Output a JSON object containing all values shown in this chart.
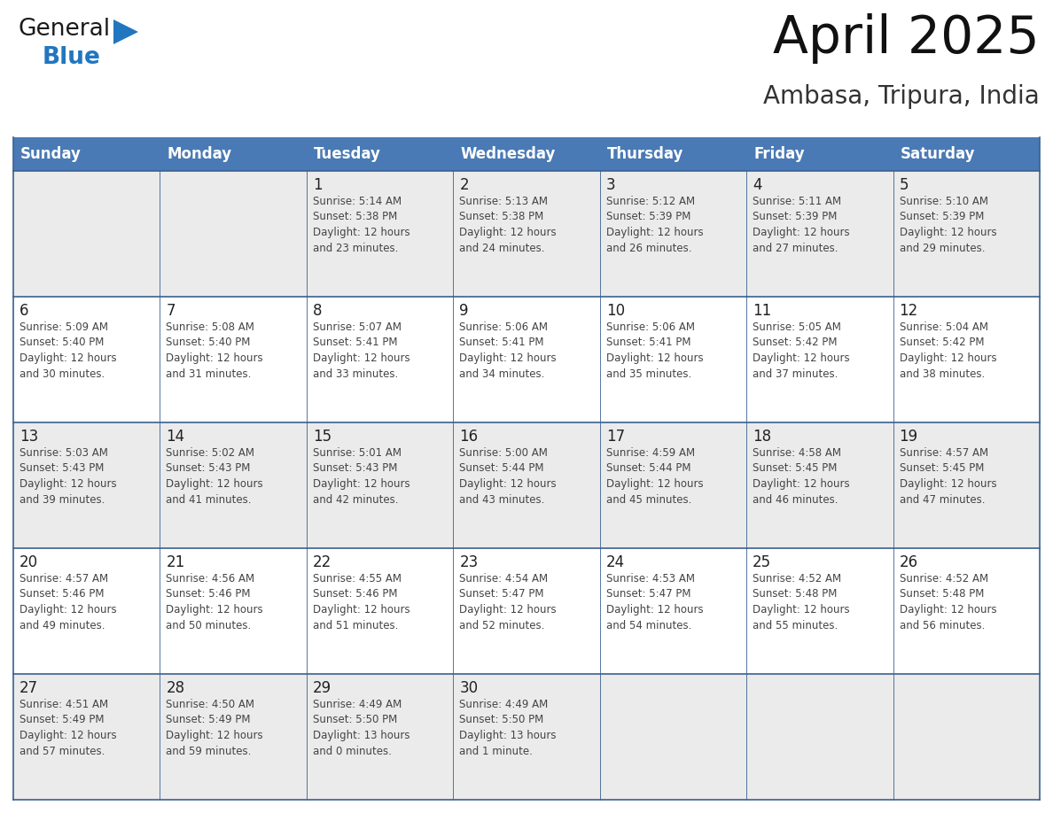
{
  "title": "April 2025",
  "subtitle": "Ambasa, Tripura, India",
  "header_bg": "#4a7ab5",
  "header_fg": "#ffffff",
  "days_of_week": [
    "Sunday",
    "Monday",
    "Tuesday",
    "Wednesday",
    "Thursday",
    "Friday",
    "Saturday"
  ],
  "row_bg_even": "#ebebeb",
  "row_bg_odd": "#ffffff",
  "cell_text_color": "#444444",
  "day_num_color": "#222222",
  "grid_line_color": "#3a6090",
  "calendar": [
    [
      {
        "day": null,
        "info": null
      },
      {
        "day": null,
        "info": null
      },
      {
        "day": 1,
        "info": "Sunrise: 5:14 AM\nSunset: 5:38 PM\nDaylight: 12 hours\nand 23 minutes."
      },
      {
        "day": 2,
        "info": "Sunrise: 5:13 AM\nSunset: 5:38 PM\nDaylight: 12 hours\nand 24 minutes."
      },
      {
        "day": 3,
        "info": "Sunrise: 5:12 AM\nSunset: 5:39 PM\nDaylight: 12 hours\nand 26 minutes."
      },
      {
        "day": 4,
        "info": "Sunrise: 5:11 AM\nSunset: 5:39 PM\nDaylight: 12 hours\nand 27 minutes."
      },
      {
        "day": 5,
        "info": "Sunrise: 5:10 AM\nSunset: 5:39 PM\nDaylight: 12 hours\nand 29 minutes."
      }
    ],
    [
      {
        "day": 6,
        "info": "Sunrise: 5:09 AM\nSunset: 5:40 PM\nDaylight: 12 hours\nand 30 minutes."
      },
      {
        "day": 7,
        "info": "Sunrise: 5:08 AM\nSunset: 5:40 PM\nDaylight: 12 hours\nand 31 minutes."
      },
      {
        "day": 8,
        "info": "Sunrise: 5:07 AM\nSunset: 5:41 PM\nDaylight: 12 hours\nand 33 minutes."
      },
      {
        "day": 9,
        "info": "Sunrise: 5:06 AM\nSunset: 5:41 PM\nDaylight: 12 hours\nand 34 minutes."
      },
      {
        "day": 10,
        "info": "Sunrise: 5:06 AM\nSunset: 5:41 PM\nDaylight: 12 hours\nand 35 minutes."
      },
      {
        "day": 11,
        "info": "Sunrise: 5:05 AM\nSunset: 5:42 PM\nDaylight: 12 hours\nand 37 minutes."
      },
      {
        "day": 12,
        "info": "Sunrise: 5:04 AM\nSunset: 5:42 PM\nDaylight: 12 hours\nand 38 minutes."
      }
    ],
    [
      {
        "day": 13,
        "info": "Sunrise: 5:03 AM\nSunset: 5:43 PM\nDaylight: 12 hours\nand 39 minutes."
      },
      {
        "day": 14,
        "info": "Sunrise: 5:02 AM\nSunset: 5:43 PM\nDaylight: 12 hours\nand 41 minutes."
      },
      {
        "day": 15,
        "info": "Sunrise: 5:01 AM\nSunset: 5:43 PM\nDaylight: 12 hours\nand 42 minutes."
      },
      {
        "day": 16,
        "info": "Sunrise: 5:00 AM\nSunset: 5:44 PM\nDaylight: 12 hours\nand 43 minutes."
      },
      {
        "day": 17,
        "info": "Sunrise: 4:59 AM\nSunset: 5:44 PM\nDaylight: 12 hours\nand 45 minutes."
      },
      {
        "day": 18,
        "info": "Sunrise: 4:58 AM\nSunset: 5:45 PM\nDaylight: 12 hours\nand 46 minutes."
      },
      {
        "day": 19,
        "info": "Sunrise: 4:57 AM\nSunset: 5:45 PM\nDaylight: 12 hours\nand 47 minutes."
      }
    ],
    [
      {
        "day": 20,
        "info": "Sunrise: 4:57 AM\nSunset: 5:46 PM\nDaylight: 12 hours\nand 49 minutes."
      },
      {
        "day": 21,
        "info": "Sunrise: 4:56 AM\nSunset: 5:46 PM\nDaylight: 12 hours\nand 50 minutes."
      },
      {
        "day": 22,
        "info": "Sunrise: 4:55 AM\nSunset: 5:46 PM\nDaylight: 12 hours\nand 51 minutes."
      },
      {
        "day": 23,
        "info": "Sunrise: 4:54 AM\nSunset: 5:47 PM\nDaylight: 12 hours\nand 52 minutes."
      },
      {
        "day": 24,
        "info": "Sunrise: 4:53 AM\nSunset: 5:47 PM\nDaylight: 12 hours\nand 54 minutes."
      },
      {
        "day": 25,
        "info": "Sunrise: 4:52 AM\nSunset: 5:48 PM\nDaylight: 12 hours\nand 55 minutes."
      },
      {
        "day": 26,
        "info": "Sunrise: 4:52 AM\nSunset: 5:48 PM\nDaylight: 12 hours\nand 56 minutes."
      }
    ],
    [
      {
        "day": 27,
        "info": "Sunrise: 4:51 AM\nSunset: 5:49 PM\nDaylight: 12 hours\nand 57 minutes."
      },
      {
        "day": 28,
        "info": "Sunrise: 4:50 AM\nSunset: 5:49 PM\nDaylight: 12 hours\nand 59 minutes."
      },
      {
        "day": 29,
        "info": "Sunrise: 4:49 AM\nSunset: 5:50 PM\nDaylight: 13 hours\nand 0 minutes."
      },
      {
        "day": 30,
        "info": "Sunrise: 4:49 AM\nSunset: 5:50 PM\nDaylight: 13 hours\nand 1 minute."
      },
      {
        "day": null,
        "info": null
      },
      {
        "day": null,
        "info": null
      },
      {
        "day": null,
        "info": null
      }
    ]
  ],
  "logo_general_color": "#1a1a1a",
  "logo_blue_color": "#2176c0",
  "logo_triangle_color": "#2176c0",
  "title_fontsize": 42,
  "subtitle_fontsize": 20,
  "header_fontsize": 12,
  "day_num_fontsize": 12,
  "info_fontsize": 8.5
}
